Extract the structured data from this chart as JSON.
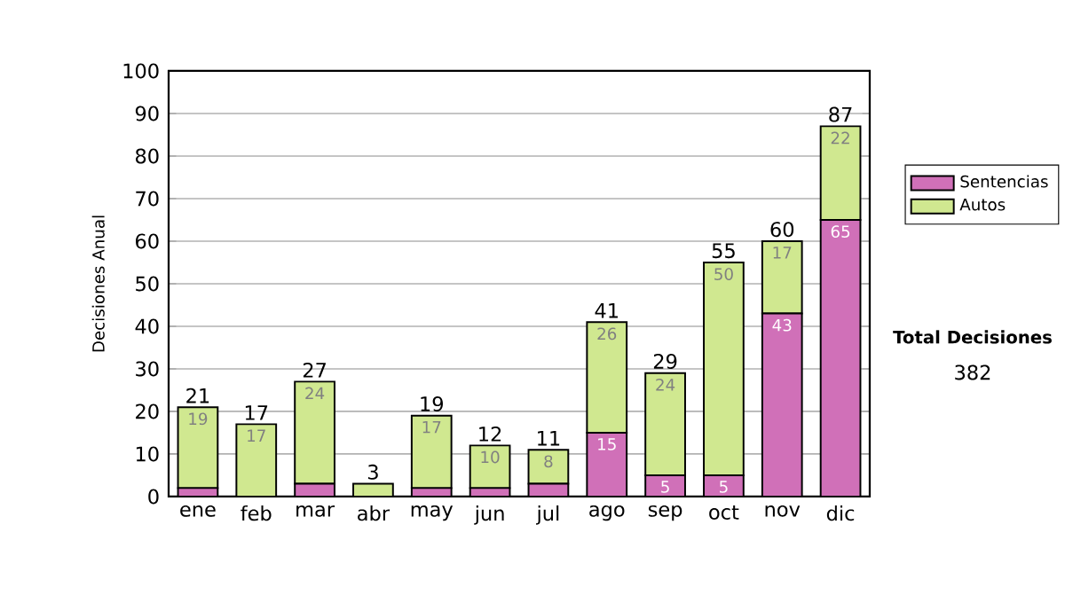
{
  "chart_data": {
    "type": "bar",
    "stacked": true,
    "ylabel": "Decisiones Anual",
    "categories": [
      "ene",
      "feb",
      "mar",
      "abr",
      "may",
      "jun",
      "jul",
      "ago",
      "sep",
      "oct",
      "nov",
      "dic"
    ],
    "series": [
      {
        "name": "Sentencias",
        "color": "#d070b8",
        "values": [
          2,
          0,
          3,
          0,
          2,
          2,
          3,
          15,
          5,
          5,
          43,
          65
        ],
        "value_labels": [
          null,
          null,
          null,
          null,
          null,
          null,
          null,
          "15",
          "5",
          "5",
          "43",
          "65"
        ]
      },
      {
        "name": "Autos",
        "color": "#d0e890",
        "values": [
          19,
          17,
          24,
          3,
          17,
          10,
          8,
          26,
          24,
          50,
          17,
          22
        ],
        "value_labels": [
          "19",
          "17",
          "24",
          null,
          "17",
          "10",
          "8",
          "26",
          "24",
          "50",
          "17",
          "22"
        ]
      }
    ],
    "totals": [
      "21",
      "17",
      "27",
      "3",
      "19",
      "12",
      "11",
      "41",
      "29",
      "55",
      "60",
      "87"
    ],
    "ylim": [
      0,
      100
    ],
    "yticks": [
      0,
      10,
      20,
      30,
      40,
      50,
      60,
      70,
      80,
      90,
      100
    ],
    "grid": "y",
    "legend": "right",
    "annotations": [
      "Total Decisiones",
      "382"
    ]
  }
}
